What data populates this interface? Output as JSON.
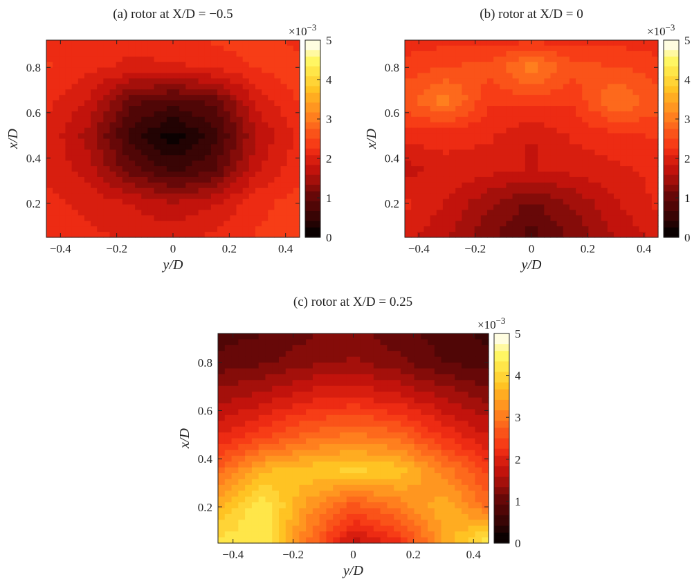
{
  "chart_data": [
    {
      "type": "heatmap",
      "title": "(a) rotor at X/D = −0.5",
      "xlabel": "y/D",
      "ylabel": "x/D",
      "xlim": [
        -0.45,
        0.45
      ],
      "ylim": [
        0.05,
        0.92
      ],
      "xticks": [
        -0.4,
        -0.2,
        0,
        0.2,
        0.4
      ],
      "xtick_labels": [
        "−0.4",
        "−0.2",
        "0",
        "0.2",
        "0.4"
      ],
      "yticks": [
        0.2,
        0.4,
        0.6,
        0.8
      ],
      "ytick_labels": [
        "0.2",
        "0.4",
        "0.6",
        "0.8"
      ],
      "colorbar": {
        "range": [
          0,
          5
        ],
        "ticks": [
          "0",
          "1",
          "2",
          "3",
          "4",
          "5"
        ],
        "multiplier": "×10−3",
        "colormap": "hot"
      },
      "grid": {
        "x": [
          -0.45,
          -0.3,
          -0.15,
          0.0,
          0.15,
          0.3,
          0.45
        ],
        "y": [
          0.05,
          0.2,
          0.35,
          0.5,
          0.65,
          0.8,
          0.92
        ],
        "z": [
          [
            2.1,
            2.1,
            2.0,
            2.0,
            2.1,
            2.3,
            2.3
          ],
          [
            2.1,
            2.0,
            1.8,
            1.6,
            1.8,
            2.2,
            2.4
          ],
          [
            2.0,
            1.7,
            1.0,
            0.6,
            0.9,
            1.8,
            2.2
          ],
          [
            2.0,
            1.5,
            0.6,
            0.1,
            0.6,
            1.6,
            2.1
          ],
          [
            2.1,
            1.8,
            1.0,
            0.8,
            1.0,
            1.9,
            2.3
          ],
          [
            2.3,
            2.1,
            2.0,
            2.0,
            2.1,
            2.3,
            2.4
          ],
          [
            2.2,
            2.1,
            2.1,
            2.2,
            2.3,
            2.4,
            2.2
          ]
        ]
      }
    },
    {
      "type": "heatmap",
      "title": "(b) rotor at X/D = 0",
      "xlabel": "y/D",
      "ylabel": "x/D",
      "xlim": [
        -0.45,
        0.45
      ],
      "ylim": [
        0.05,
        0.92
      ],
      "xticks": [
        -0.4,
        -0.2,
        0,
        0.2,
        0.4
      ],
      "xtick_labels": [
        "−0.4",
        "−0.2",
        "0",
        "0.2",
        "0.4"
      ],
      "yticks": [
        0.2,
        0.4,
        0.6,
        0.8
      ],
      "ytick_labels": [
        "0.2",
        "0.4",
        "0.6",
        "0.8"
      ],
      "colorbar": {
        "range": [
          0,
          5
        ],
        "ticks": [
          "0",
          "1",
          "2",
          "3",
          "4",
          "5"
        ],
        "multiplier": "×10−3",
        "colormap": "hot"
      },
      "grid": {
        "x": [
          -0.45,
          -0.3,
          -0.15,
          0.0,
          0.15,
          0.3,
          0.45
        ],
        "y": [
          0.05,
          0.2,
          0.35,
          0.5,
          0.65,
          0.8,
          0.92
        ],
        "z": [
          [
            1.9,
            1.6,
            1.2,
            0.8,
            1.2,
            1.6,
            1.9
          ],
          [
            2.1,
            1.8,
            1.4,
            1.1,
            1.4,
            1.8,
            2.1
          ],
          [
            1.7,
            2.0,
            1.9,
            1.8,
            1.9,
            2.0,
            2.1
          ],
          [
            2.2,
            2.1,
            2.1,
            1.8,
            2.1,
            2.2,
            2.3
          ],
          [
            2.6,
            3.1,
            2.3,
            2.4,
            2.3,
            3.0,
            2.6
          ],
          [
            2.4,
            2.5,
            2.6,
            3.1,
            2.6,
            2.5,
            2.4
          ],
          [
            2.1,
            2.2,
            2.2,
            2.2,
            2.2,
            2.2,
            2.1
          ]
        ]
      }
    },
    {
      "type": "heatmap",
      "title": "(c) rotor at X/D = 0.25",
      "xlabel": "y/D",
      "ylabel": "x/D",
      "xlim": [
        -0.45,
        0.45
      ],
      "ylim": [
        0.05,
        0.92
      ],
      "xticks": [
        -0.4,
        -0.2,
        0,
        0.2,
        0.4
      ],
      "xtick_labels": [
        "−0.4",
        "−0.2",
        "0",
        "0.2",
        "0.4"
      ],
      "yticks": [
        0.2,
        0.4,
        0.6,
        0.8
      ],
      "ytick_labels": [
        "0.2",
        "0.4",
        "0.6",
        "0.8"
      ],
      "colorbar": {
        "range": [
          0,
          5
        ],
        "ticks": [
          "0",
          "1",
          "2",
          "3",
          "4",
          "5"
        ],
        "multiplier": "×10−3",
        "colormap": "hot"
      },
      "grid": {
        "x": [
          -0.45,
          -0.3,
          -0.15,
          0.0,
          0.15,
          0.3,
          0.45
        ],
        "y": [
          0.05,
          0.2,
          0.35,
          0.5,
          0.65,
          0.8,
          0.92
        ],
        "z": [
          [
            4.2,
            4.3,
            2.9,
            1.7,
            2.2,
            3.4,
            4.4
          ],
          [
            3.6,
            4.3,
            3.3,
            2.6,
            3.0,
            3.6,
            2.9
          ],
          [
            2.8,
            3.6,
            3.8,
            3.9,
            3.8,
            3.1,
            2.4
          ],
          [
            2.0,
            2.4,
            2.8,
            3.0,
            2.8,
            2.2,
            1.8
          ],
          [
            1.5,
            1.7,
            2.0,
            2.1,
            1.9,
            1.6,
            1.3
          ],
          [
            1.0,
            1.1,
            1.3,
            1.4,
            1.2,
            0.9,
            0.8
          ],
          [
            0.8,
            0.9,
            1.1,
            1.2,
            1.0,
            0.8,
            0.6
          ]
        ]
      }
    }
  ]
}
